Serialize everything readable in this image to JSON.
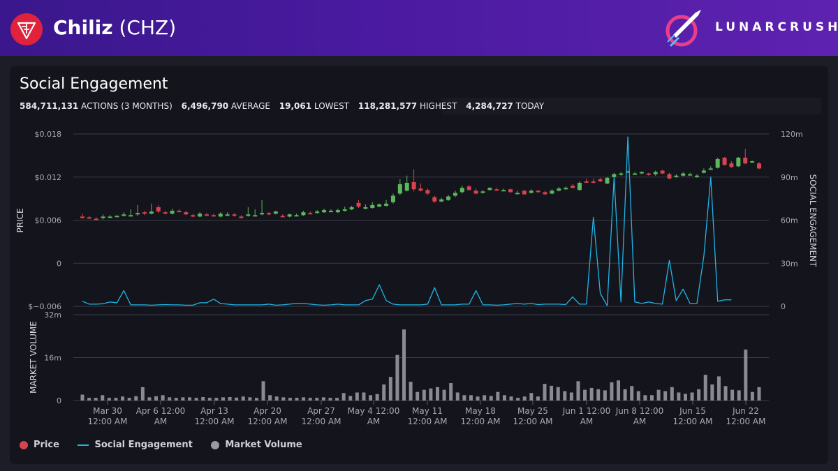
{
  "header": {
    "coin_name": "Chiliz",
    "coin_symbol": "(CHZ)",
    "brand": "LUNARCRUSH"
  },
  "panel": {
    "title": "Social Engagement",
    "stats": [
      {
        "value": "584,711,131",
        "label": "ACTIONS (3 MONTHS)"
      },
      {
        "value": "6,496,790",
        "label": "AVERAGE"
      },
      {
        "value": "19,061",
        "label": "LOWEST"
      },
      {
        "value": "118,281,577",
        "label": "HIGHEST"
      },
      {
        "value": "4,284,727",
        "label": "TODAY"
      }
    ]
  },
  "legend": [
    {
      "label": "Price",
      "color": "#d9434e",
      "kind": "dot"
    },
    {
      "label": "Social Engagement",
      "color": "#1fb5e8",
      "kind": "line"
    },
    {
      "label": "Market Volume",
      "color": "#9a9aa2",
      "kind": "dot"
    }
  ],
  "chart_data": [
    {
      "type": "candlestick+line",
      "ylabel": "PRICE",
      "y2label": "SOCIAL ENGAGEMENT",
      "ylim": [
        -0.006,
        0.018
      ],
      "y2lim": [
        0,
        120
      ],
      "yticks": [
        "$0.018",
        "$0.012",
        "$0.006",
        "0",
        "$−0.006"
      ],
      "y2ticks": [
        "120m",
        "90m",
        "60m",
        "30m",
        "0"
      ],
      "up_color": "#5cb85c",
      "down_color": "#d9434e",
      "engagement_color": "#1fb5e8",
      "price": [
        [
          0.0065,
          0.0064,
          0.0069,
          0.0062
        ],
        [
          0.0064,
          0.0063,
          0.0066,
          0.0062
        ],
        [
          0.0062,
          0.0061,
          0.0064,
          0.006
        ],
        [
          0.0063,
          0.0065,
          0.0068,
          0.0061
        ],
        [
          0.0065,
          0.0065,
          0.0067,
          0.0064
        ],
        [
          0.0065,
          0.0066,
          0.0067,
          0.0064
        ],
        [
          0.0066,
          0.0068,
          0.0071,
          0.0065
        ],
        [
          0.0067,
          0.0067,
          0.0075,
          0.0066
        ],
        [
          0.0068,
          0.007,
          0.0081,
          0.0066
        ],
        [
          0.0071,
          0.0069,
          0.0073,
          0.0067
        ],
        [
          0.0069,
          0.0072,
          0.0083,
          0.0068
        ],
        [
          0.0078,
          0.0072,
          0.0081,
          0.007
        ],
        [
          0.0071,
          0.0069,
          0.0073,
          0.0068
        ],
        [
          0.0069,
          0.0073,
          0.0076,
          0.0068
        ],
        [
          0.0073,
          0.0072,
          0.0075,
          0.0071
        ],
        [
          0.0071,
          0.0068,
          0.0073,
          0.0067
        ],
        [
          0.0067,
          0.0065,
          0.0069,
          0.0064
        ],
        [
          0.0065,
          0.0069,
          0.0071,
          0.0064
        ],
        [
          0.0068,
          0.0067,
          0.007,
          0.0066
        ],
        [
          0.0067,
          0.0066,
          0.0069,
          0.0065
        ],
        [
          0.0065,
          0.0069,
          0.0071,
          0.0064
        ],
        [
          0.0067,
          0.0068,
          0.0071,
          0.0066
        ],
        [
          0.0068,
          0.0066,
          0.007,
          0.0065
        ],
        [
          0.0065,
          0.0063,
          0.0067,
          0.0062
        ],
        [
          0.0066,
          0.0068,
          0.0078,
          0.0065
        ],
        [
          0.0067,
          0.0067,
          0.0075,
          0.0066
        ],
        [
          0.0068,
          0.007,
          0.0088,
          0.0067
        ],
        [
          0.007,
          0.0068,
          0.0071,
          0.0067
        ],
        [
          0.0069,
          0.0072,
          0.0073,
          0.0068
        ],
        [
          0.0066,
          0.0065,
          0.0068,
          0.0064
        ],
        [
          0.0065,
          0.0068,
          0.0069,
          0.0064
        ],
        [
          0.0067,
          0.0067,
          0.0069,
          0.0066
        ],
        [
          0.0067,
          0.0071,
          0.0073,
          0.0066
        ],
        [
          0.007,
          0.0069,
          0.0072,
          0.0068
        ],
        [
          0.007,
          0.0072,
          0.0074,
          0.0069
        ],
        [
          0.0071,
          0.0074,
          0.0076,
          0.007
        ],
        [
          0.0073,
          0.0073,
          0.0075,
          0.0072
        ],
        [
          0.0071,
          0.0074,
          0.0076,
          0.007
        ],
        [
          0.0073,
          0.0075,
          0.0079,
          0.0072
        ],
        [
          0.0075,
          0.0078,
          0.008,
          0.0074
        ],
        [
          0.0084,
          0.0079,
          0.0088,
          0.0077
        ],
        [
          0.0076,
          0.0078,
          0.0082,
          0.0075
        ],
        [
          0.0077,
          0.0081,
          0.0085,
          0.0076
        ],
        [
          0.0079,
          0.0082,
          0.0083,
          0.0078
        ],
        [
          0.008,
          0.0083,
          0.0088,
          0.0079
        ],
        [
          0.0085,
          0.0094,
          0.0097,
          0.0083
        ],
        [
          0.0097,
          0.011,
          0.0117,
          0.0095
        ],
        [
          0.0101,
          0.0112,
          0.0122,
          0.01
        ],
        [
          0.0113,
          0.0103,
          0.0131,
          0.01
        ],
        [
          0.0104,
          0.0101,
          0.0111,
          0.01
        ],
        [
          0.0102,
          0.0097,
          0.0104,
          0.0095
        ],
        [
          0.0092,
          0.0086,
          0.0094,
          0.0084
        ],
        [
          0.0086,
          0.0089,
          0.0091,
          0.0085
        ],
        [
          0.0088,
          0.0093,
          0.0095,
          0.0087
        ],
        [
          0.0094,
          0.0098,
          0.0101,
          0.0092
        ],
        [
          0.0099,
          0.0105,
          0.0108,
          0.0097
        ],
        [
          0.0107,
          0.0102,
          0.0109,
          0.0101
        ],
        [
          0.0101,
          0.0097,
          0.0104,
          0.0096
        ],
        [
          0.0098,
          0.01,
          0.0102,
          0.0097
        ],
        [
          0.0102,
          0.0105,
          0.0106,
          0.0101
        ],
        [
          0.0103,
          0.0102,
          0.0105,
          0.0101
        ],
        [
          0.0102,
          0.0102,
          0.0104,
          0.0101
        ],
        [
          0.0103,
          0.0099,
          0.0104,
          0.0098
        ],
        [
          0.0098,
          0.0098,
          0.0101,
          0.0097
        ],
        [
          0.0101,
          0.0096,
          0.0102,
          0.0095
        ],
        [
          0.0098,
          0.0101,
          0.0103,
          0.0097
        ],
        [
          0.0101,
          0.0099,
          0.0102,
          0.0098
        ],
        [
          0.0099,
          0.0096,
          0.0101,
          0.0095
        ],
        [
          0.0097,
          0.0101,
          0.0103,
          0.0096
        ],
        [
          0.0101,
          0.0104,
          0.0106,
          0.01
        ],
        [
          0.0103,
          0.0105,
          0.0107,
          0.0102
        ],
        [
          0.0108,
          0.0105,
          0.011,
          0.0104
        ],
        [
          0.0102,
          0.0112,
          0.0114,
          0.0101
        ],
        [
          0.0114,
          0.0113,
          0.0118,
          0.0112
        ],
        [
          0.0114,
          0.0113,
          0.0118,
          0.0111
        ],
        [
          0.0117,
          0.0114,
          0.0119,
          0.0113
        ],
        [
          0.0111,
          0.0119,
          0.012,
          0.011
        ],
        [
          0.012,
          0.0124,
          0.0126,
          0.0119
        ],
        [
          0.0124,
          0.0125,
          0.0127,
          0.0122
        ],
        [
          0.0127,
          0.0128,
          0.0129,
          0.0126
        ],
        [
          0.0124,
          0.0125,
          0.0127,
          0.0123
        ],
        [
          0.0126,
          0.0127,
          0.0128,
          0.0124
        ],
        [
          0.0125,
          0.0123,
          0.0126,
          0.0122
        ],
        [
          0.0124,
          0.0127,
          0.0129,
          0.0122
        ],
        [
          0.0129,
          0.0125,
          0.013,
          0.0124
        ],
        [
          0.0124,
          0.0118,
          0.0126,
          0.0117
        ],
        [
          0.012,
          0.0122,
          0.0124,
          0.0119
        ],
        [
          0.0122,
          0.0125,
          0.0127,
          0.0121
        ],
        [
          0.0124,
          0.0124,
          0.0126,
          0.0123
        ],
        [
          0.012,
          0.0122,
          0.0124,
          0.0119
        ],
        [
          0.0126,
          0.0129,
          0.0132,
          0.0125
        ],
        [
          0.0131,
          0.0132,
          0.0135,
          0.013
        ],
        [
          0.0133,
          0.0145,
          0.0147,
          0.0132
        ],
        [
          0.0147,
          0.0137,
          0.0148,
          0.0136
        ],
        [
          0.0139,
          0.0134,
          0.0142,
          0.0133
        ],
        [
          0.0135,
          0.0147,
          0.0148,
          0.0134
        ],
        [
          0.0147,
          0.0139,
          0.0159,
          0.0138
        ],
        [
          0.0141,
          0.0142,
          0.0143,
          0.014
        ],
        [
          0.0139,
          0.0132,
          0.0141,
          0.0131
        ]
      ],
      "engagement": [
        3.5,
        1.5,
        1.5,
        1.8,
        3,
        2.5,
        11,
        1,
        1,
        1,
        0.8,
        1,
        1.2,
        1,
        1,
        0.8,
        0.8,
        2.5,
        2.5,
        5,
        2,
        1.5,
        1,
        1,
        1,
        1,
        1,
        1.5,
        0.8,
        1,
        1.5,
        2,
        2,
        1.5,
        1,
        0.8,
        1,
        1.5,
        1,
        1,
        1,
        4,
        5,
        15,
        4,
        1.5,
        1,
        1,
        1,
        1,
        1.5,
        13,
        1,
        1,
        1,
        1.5,
        1.5,
        11,
        1,
        1,
        0.8,
        1,
        1.5,
        2,
        1.5,
        2,
        1.2,
        1.5,
        1.5,
        1.5,
        1.2,
        6.5,
        1.5,
        1.5,
        62,
        9,
        0.5,
        90,
        3,
        118,
        3,
        2,
        3,
        2,
        1.5,
        32,
        4,
        12,
        2,
        2,
        35,
        90,
        3.5,
        4.5,
        4.5
      ],
      "x_tick_labels": [
        [
          "Mar 30",
          "12:00 AM"
        ],
        [
          "Apr 6 12:00",
          "AM"
        ],
        [
          "Apr 13",
          "12:00 AM"
        ],
        [
          "Apr 20",
          "12:00 AM"
        ],
        [
          "Apr 27",
          "12:00 AM"
        ],
        [
          "May 4 12:00",
          "AM"
        ],
        [
          "May 11",
          "12:00 AM"
        ],
        [
          "May 18",
          "12:00 AM"
        ],
        [
          "May 25",
          "12:00 AM"
        ],
        [
          "Jun 1 12:00",
          "AM"
        ],
        [
          "Jun 8 12:00",
          "AM"
        ],
        [
          "Jun 15",
          "12:00 AM"
        ],
        [
          "Jun 22",
          "12:00 AM"
        ]
      ]
    },
    {
      "type": "bar",
      "ylabel": "MARKET VOLUME",
      "ylim": [
        0,
        32
      ],
      "yticks": [
        "32m",
        "16m",
        "0"
      ],
      "bar_color": "#8a8a92",
      "values": [
        2.2,
        1,
        1,
        2,
        1,
        1,
        1.5,
        1,
        1.6,
        5,
        1.2,
        1.6,
        2,
        1.2,
        1,
        1.2,
        1.2,
        1,
        1.3,
        1,
        1,
        1.2,
        1.3,
        1.1,
        1.5,
        1.2,
        1,
        7.2,
        2,
        1.5,
        1.2,
        1,
        1,
        1.2,
        1,
        1,
        1.2,
        1,
        1,
        2.8,
        1.7,
        3,
        3,
        2,
        2.4,
        6,
        8.8,
        17,
        26.5,
        7,
        3.2,
        4,
        4.5,
        5,
        4,
        6.5,
        3,
        2,
        2,
        1.5,
        2,
        1.7,
        3.2,
        2,
        1.5,
        1,
        1.5,
        2.8,
        1.5,
        6.2,
        5.5,
        5,
        3.5,
        3,
        7.2,
        4,
        4.7,
        4.2,
        3.8,
        6.8,
        7.5,
        4.2,
        5.4,
        3.5,
        2,
        2,
        4,
        3.5,
        5,
        3,
        2.5,
        3,
        4.2,
        9.6,
        6,
        9,
        5.4,
        4,
        3.8,
        19,
        3.2,
        5
      ]
    }
  ]
}
